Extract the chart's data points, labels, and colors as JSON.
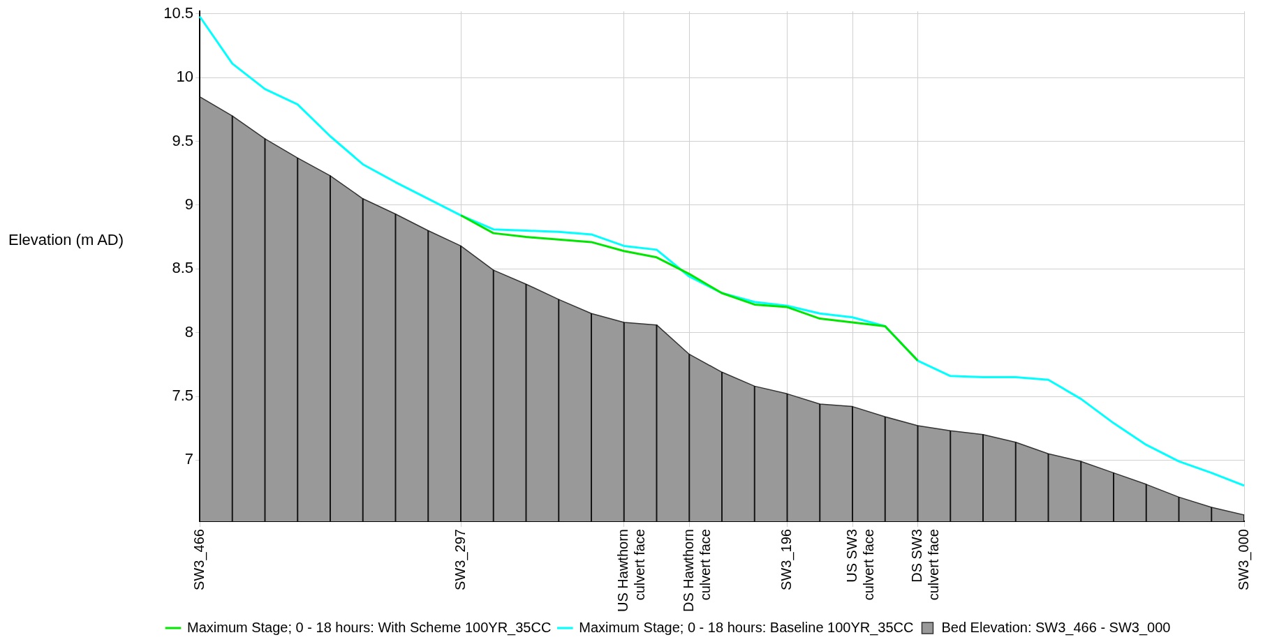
{
  "chart_data": {
    "type": "line",
    "ylabel": "Elevation (m AD)",
    "grid": true,
    "legend": "bottom left",
    "categories": [
      "SW3_466",
      null,
      null,
      null,
      null,
      null,
      null,
      null,
      "SW3_297",
      null,
      null,
      null,
      null,
      "US Hawthorn culvert face",
      null,
      "DS Hawthorn culvert face",
      null,
      null,
      "SW3_196",
      null,
      "US SW3 culvert face",
      null,
      "DS SW3 culvert face",
      null,
      null,
      null,
      null,
      null,
      null,
      null,
      null,
      null,
      "SW3_000"
    ],
    "ylim": [
      6.52,
      10.52
    ],
    "yticks": [
      7,
      7.5,
      8,
      8.5,
      9,
      9.5,
      10,
      10.5
    ],
    "series": [
      {
        "name": "Maximum Stage; 0 - 18 hours: With Scheme 100YR_35CC",
        "color": "#00e600",
        "values": [
          null,
          null,
          null,
          null,
          null,
          null,
          null,
          null,
          8.92,
          8.78,
          8.75,
          8.73,
          8.71,
          8.64,
          8.59,
          8.46,
          8.31,
          8.22,
          8.2,
          8.11,
          8.08,
          8.05,
          7.78,
          null,
          null,
          null,
          null,
          null,
          null,
          null,
          null,
          null,
          null
        ]
      },
      {
        "name": "Maximum Stage; 0 - 18 hours: Baseline 100YR_35CC",
        "color": "#00ffff",
        "values": [
          10.48,
          10.11,
          9.91,
          9.79,
          9.54,
          9.32,
          9.18,
          9.05,
          8.92,
          8.81,
          8.8,
          8.79,
          8.77,
          8.68,
          8.65,
          8.44,
          8.31,
          8.24,
          8.21,
          8.15,
          8.12,
          8.05,
          7.78,
          7.66,
          7.65,
          7.65,
          7.63,
          7.48,
          7.29,
          7.12,
          6.99,
          6.9,
          6.8
        ]
      },
      {
        "name": "Bed Elevation: SW3_466 - SW3_000",
        "type": "area",
        "color": "#999999",
        "values": [
          9.85,
          9.7,
          9.52,
          9.37,
          9.23,
          9.05,
          8.93,
          8.8,
          8.68,
          8.49,
          8.38,
          8.26,
          8.15,
          8.08,
          8.06,
          7.83,
          7.69,
          7.58,
          7.52,
          7.44,
          7.42,
          7.34,
          7.27,
          7.23,
          7.2,
          7.14,
          7.05,
          6.99,
          6.9,
          6.81,
          6.71,
          6.63,
          6.57
        ]
      },
      {
        "type": "bar",
        "color": "#111111",
        "values": [
          9.85,
          9.7,
          9.52,
          9.37,
          9.23,
          9.05,
          8.93,
          8.8,
          8.68,
          8.49,
          8.38,
          8.26,
          8.15,
          8.08,
          8.06,
          7.83,
          7.69,
          7.58,
          7.52,
          7.44,
          7.42,
          7.34,
          7.27,
          7.23,
          7.2,
          7.14,
          7.05,
          6.99,
          6.9,
          6.81,
          6.71,
          6.63,
          6.57
        ]
      }
    ]
  }
}
